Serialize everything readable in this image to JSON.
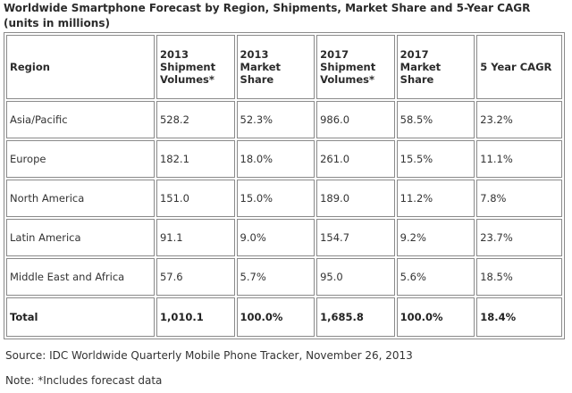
{
  "title": "Worldwide Smartphone Forecast by Region, Shipments, Market Share and 5-Year CAGR (units in millions)",
  "table": {
    "headers": [
      "Region",
      "2013 Shipment Volumes*",
      "2013 Market Share",
      "2017 Shipment Volumes*",
      "2017 Market Share",
      "5 Year CAGR"
    ],
    "rows": [
      [
        "Asia/Pacific",
        "528.2",
        "52.3%",
        "986.0",
        "58.5%",
        "23.2%"
      ],
      [
        "Europe",
        "182.1",
        "18.0%",
        "261.0",
        "15.5%",
        "11.1%"
      ],
      [
        "North America",
        "151.0",
        "15.0%",
        "189.0",
        "11.2%",
        "7.8%"
      ],
      [
        "Latin America",
        "91.1",
        "9.0%",
        "154.7",
        "9.2%",
        "23.7%"
      ],
      [
        "Middle East and Africa",
        "57.6",
        "5.7%",
        "95.0",
        "5.6%",
        "18.5%"
      ]
    ],
    "total": [
      "Total",
      "1,010.1",
      "100.0%",
      "1,685.8",
      "100.0%",
      "18.4%"
    ]
  },
  "source": "Source:  IDC Worldwide Quarterly Mobile Phone Tracker, November 26, 2013",
  "note": "Note:  *Includes forecast data"
}
